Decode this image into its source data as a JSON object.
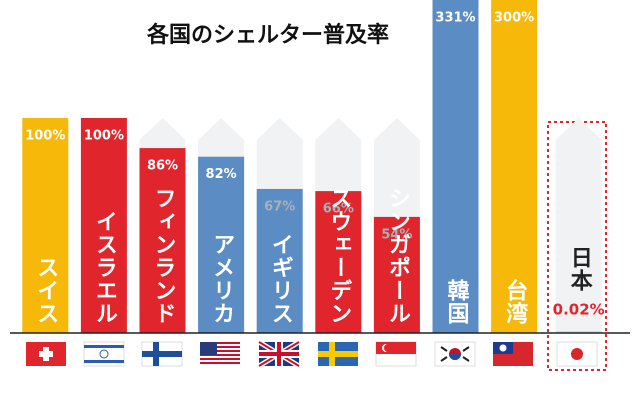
{
  "chart_data": {
    "type": "bar",
    "title": "各国のシェルター普及率",
    "categories": [
      "スイス",
      "イスラエル",
      "フィンランド",
      "アメリカ",
      "イギリス",
      "スウェーデン",
      "シンガポール",
      "韓国",
      "台湾",
      "日本"
    ],
    "values": [
      100,
      100,
      86,
      82,
      67,
      66,
      54,
      331,
      300,
      0.02
    ],
    "value_labels": [
      "100%",
      "100%",
      "86%",
      "82%",
      "67%",
      "66%",
      "54%",
      "331%",
      "300%",
      "0.02%"
    ],
    "colors": [
      "#f6b90a",
      "#e0262c",
      "#e0262c",
      "#5b8dc4",
      "#5b8dc4",
      "#e0262c",
      "#e0262c",
      "#5b8dc4",
      "#f6b90a",
      "#bfe6ea"
    ],
    "label_colors": [
      "#ffffff",
      "#ffffff",
      "#ffffff",
      "#ffffff",
      "#a9b0ba",
      "#a9b0ba",
      "#a9b0ba",
      "#ffffff",
      "#ffffff",
      "#e0262c"
    ],
    "ylim": [
      0,
      100
    ]
  }
}
